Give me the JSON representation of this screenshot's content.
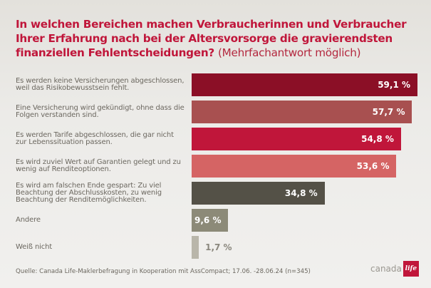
{
  "title": {
    "main": "In welchen Bereichen machen Verbraucherinnen und Verbraucher Ihrer Erfahrung nach bei der Altersvorsorge die gravierendsten finanziellen Fehlentscheidungen?",
    "sub": "(Mehrfachantwort möglich)"
  },
  "chart_data": {
    "type": "bar",
    "orientation": "horizontal",
    "title": "In welchen Bereichen machen Verbraucherinnen und Verbraucher Ihrer Erfahrung nach bei der Altersvorsorge die gravierendsten finanziellen Fehlentscheidungen? (Mehrfachantwort möglich)",
    "categories": [
      "Es werden keine Versicherungen abgeschlossen, weil das Risikobewusstsein fehlt.",
      "Eine Versicherung wird gekündigt, ohne dass die Folgen verstanden sind.",
      "Es werden Tarife abgeschlossen, die gar nicht zur Lebenssituation passen.",
      "Es wird zuviel Wert auf Garantien gelegt und zu wenig auf Renditeoptionen.",
      "Es wird am falschen Ende gespart: Zu viel Beachtung der Abschlusskosten, zu wenig Beachtung der Renditemöglichkeiten.",
      "Andere",
      "Weiß nicht"
    ],
    "values": [
      59.1,
      57.7,
      54.8,
      53.6,
      34.8,
      9.6,
      1.7
    ],
    "value_labels": [
      "59,1 %",
      "57,7 %",
      "54,8 %",
      "53,6 %",
      "34,8 %",
      "9,6 %",
      "1,7 %"
    ],
    "colors": [
      "#8b0f26",
      "#a85050",
      "#c0163a",
      "#d56464",
      "#545147",
      "#8c8a78",
      "#b9b6aa"
    ],
    "unit": "%",
    "xlabel": "",
    "ylabel": "",
    "xlim": [
      0,
      59.1
    ],
    "grid": false,
    "legend": "none"
  },
  "footer": {
    "source": "Quelle: Canada Life-Maklerbefragung in Kooperation mit AssCompact; 17.06. -28.06.24 (n=345)"
  },
  "logo": {
    "word": "canada",
    "mark": "life"
  }
}
